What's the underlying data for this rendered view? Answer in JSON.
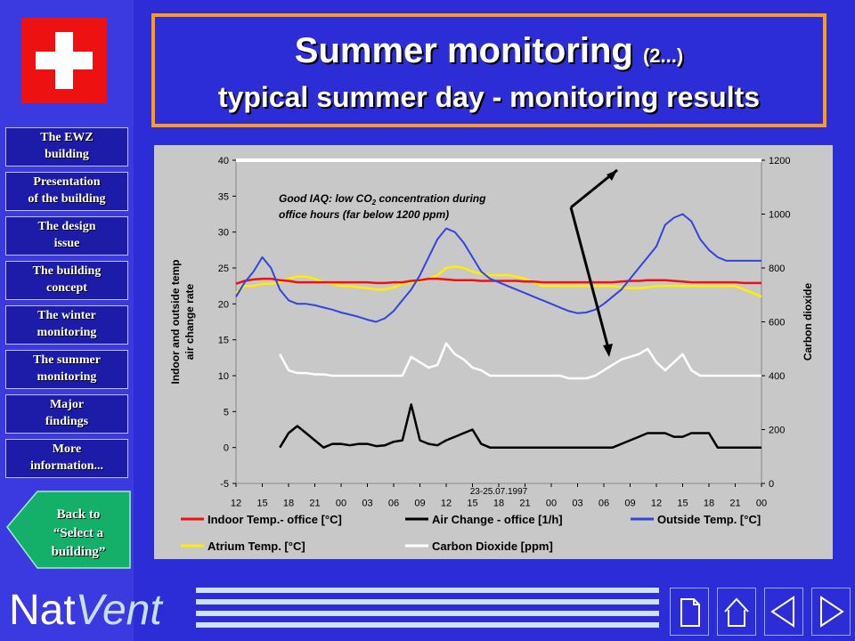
{
  "title": {
    "main": "Summer monitoring",
    "suffix": "(2...)",
    "subtitle": "typical summer day - monitoring results"
  },
  "nav": [
    {
      "label": "The EWZ\nbuilding"
    },
    {
      "label": "Presentation\nof the building"
    },
    {
      "label": "The design\nissue"
    },
    {
      "label": "The building\nconcept"
    },
    {
      "label": "The winter\nmonitoring"
    },
    {
      "label": "The summer\nmonitoring"
    },
    {
      "label": "Major\nfindings"
    },
    {
      "label": "More\ninformation..."
    }
  ],
  "back_label": "Back to\n“Select a\nbuilding”",
  "logo": {
    "part1": "Nat",
    "part2": "Vent"
  },
  "chart_data": {
    "type": "line",
    "xlabel": "23-25.07.1997",
    "ylabel_lines": [
      "Indoor and outside temp",
      "air change rate"
    ],
    "y2label": "Carbon dioxide",
    "ylim": [
      -5,
      40
    ],
    "y2lim": [
      0,
      1200
    ],
    "yticks": [
      -5,
      0,
      5,
      10,
      15,
      20,
      25,
      30,
      35,
      40
    ],
    "y2ticks": [
      0,
      200,
      400,
      600,
      800,
      1000,
      1200
    ],
    "xtick_labels": [
      "12",
      "15",
      "18",
      "21",
      "00",
      "03",
      "06",
      "09",
      "12",
      "15",
      "18",
      "21",
      "00",
      "03",
      "06",
      "09",
      "12",
      "15",
      "18",
      "21",
      "00"
    ],
    "annotation": {
      "line1": "Good IAQ: low CO",
      "sub": "2",
      "line1_end": " concentration during",
      "line2": "office hours (far below 1200 ppm)"
    },
    "x": [
      12,
      13,
      14,
      15,
      16,
      17,
      18,
      19,
      20,
      21,
      22,
      23,
      24,
      25,
      26,
      27,
      28,
      29,
      30,
      31,
      32,
      33,
      34,
      35,
      36,
      37,
      38,
      39,
      40,
      41,
      42,
      43,
      44,
      45,
      46,
      47,
      48,
      49,
      50,
      51,
      52,
      53,
      54,
      55,
      56,
      57,
      58,
      59,
      60,
      61,
      62,
      63,
      64,
      65,
      66,
      67,
      68,
      69,
      70,
      71,
      72
    ],
    "series": [
      {
        "name": "Indoor Temp.- office [°C]",
        "color": "#ee1111",
        "axis": "left",
        "values": [
          22.8,
          23.2,
          23.4,
          23.5,
          23.5,
          23.3,
          23.2,
          23.0,
          23.0,
          23.0,
          23.0,
          23.0,
          23.0,
          23.0,
          23.0,
          23.0,
          22.9,
          22.9,
          23.0,
          23.0,
          23.2,
          23.3,
          23.5,
          23.5,
          23.4,
          23.3,
          23.3,
          23.3,
          23.2,
          23.2,
          23.2,
          23.2,
          23.2,
          23.1,
          23.1,
          23.0,
          23.0,
          23.0,
          23.0,
          23.0,
          23.0,
          23.0,
          23.0,
          23.0,
          23.1,
          23.2,
          23.2,
          23.3,
          23.3,
          23.3,
          23.2,
          23.1,
          23.0,
          23.0,
          23.0,
          23.0,
          23.0,
          23.0,
          22.9,
          22.9,
          22.9
        ]
      },
      {
        "name": "Air Change - office [1/h]",
        "color": "#000000",
        "axis": "left",
        "values": [
          null,
          null,
          null,
          null,
          null,
          0,
          2,
          3,
          2,
          1,
          0,
          0.5,
          0.5,
          0.3,
          0.5,
          0.5,
          0.2,
          0.3,
          0.8,
          1,
          6,
          1,
          0.5,
          0.3,
          1,
          1.5,
          2,
          2.5,
          0.5,
          0,
          0,
          0,
          0,
          0,
          0,
          0,
          0,
          0,
          0,
          0,
          0,
          0,
          0,
          0,
          0.5,
          1,
          1.5,
          2,
          2,
          2,
          1.5,
          1.5,
          2,
          2,
          2,
          0,
          0,
          0,
          0,
          0,
          0
        ]
      },
      {
        "name": "Outside Temp. [°C]",
        "color": "#3344dd",
        "axis": "left",
        "values": [
          21.0,
          23.0,
          24.5,
          26.5,
          25.0,
          22.0,
          20.5,
          20.0,
          20.0,
          19.8,
          19.5,
          19.2,
          18.8,
          18.5,
          18.2,
          17.8,
          17.5,
          18.0,
          19.0,
          20.5,
          22.0,
          24.0,
          26.5,
          29.0,
          30.5,
          30.0,
          28.5,
          26.5,
          24.5,
          23.5,
          23.0,
          22.5,
          22.0,
          21.5,
          21.0,
          20.5,
          20.0,
          19.5,
          19.0,
          18.7,
          18.8,
          19.2,
          20.0,
          21.0,
          22.0,
          23.5,
          25.0,
          26.5,
          28.0,
          31.0,
          32.0,
          32.5,
          31.5,
          29.0,
          27.5,
          26.5,
          26.0,
          26.0,
          26.0,
          26.0,
          26.0
        ]
      },
      {
        "name": "Atrium Temp. [°C]",
        "color": "#ffee00",
        "axis": "left",
        "values": [
          21.5,
          22.5,
          22.5,
          22.8,
          22.8,
          23.0,
          23.5,
          23.8,
          23.8,
          23.5,
          23.0,
          22.8,
          22.5,
          22.5,
          22.3,
          22.2,
          22.0,
          22.0,
          22.3,
          22.8,
          23.0,
          23.2,
          23.5,
          24.0,
          25.0,
          25.2,
          25.0,
          24.5,
          24.2,
          24.0,
          24.0,
          24.0,
          23.8,
          23.5,
          23.0,
          22.5,
          22.5,
          22.5,
          22.5,
          22.5,
          22.5,
          22.5,
          22.5,
          22.5,
          22.3,
          22.2,
          22.2,
          22.3,
          22.5,
          22.5,
          22.5,
          22.5,
          22.5,
          22.5,
          22.5,
          22.5,
          22.5,
          22.5,
          22.0,
          21.5,
          21.0
        ]
      },
      {
        "name": "Carbon Dioxide [ppm]",
        "color": "#ffffff",
        "axis": "right",
        "values": [
          null,
          null,
          null,
          null,
          null,
          480,
          420,
          410,
          410,
          405,
          405,
          400,
          400,
          400,
          400,
          400,
          400,
          400,
          400,
          400,
          470,
          450,
          430,
          440,
          520,
          480,
          460,
          430,
          420,
          400,
          400,
          400,
          400,
          400,
          400,
          400,
          400,
          400,
          390,
          390,
          390,
          400,
          420,
          440,
          460,
          470,
          480,
          500,
          450,
          420,
          450,
          480,
          420,
          400,
          400,
          400,
          400,
          400,
          400,
          400,
          400
        ]
      }
    ]
  }
}
